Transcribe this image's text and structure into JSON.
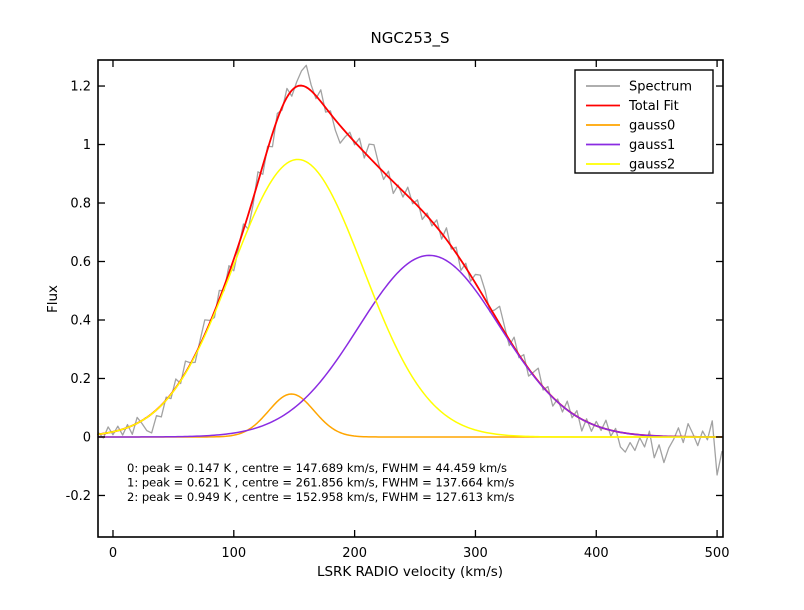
{
  "figure": {
    "title": "NGC253_S"
  },
  "chart_data": {
    "type": "line",
    "title": "NGC253_S",
    "xlabel": "LSRK RADIO velocity (km/s)",
    "ylabel": "Flux",
    "xlim": [
      -12.4,
      504.9
    ],
    "ylim": [
      -0.342,
      1.289
    ],
    "grid": false,
    "x_ticks": {
      "values": [
        0,
        100,
        200,
        300,
        400,
        500
      ],
      "labels": [
        "0",
        "100",
        "200",
        "300",
        "400",
        "500"
      ]
    },
    "y_ticks": {
      "values": [
        -0.2,
        0,
        0.2,
        0.4,
        0.6,
        0.8,
        1.0,
        1.2
      ],
      "labels": [
        "-0.2",
        "0",
        "0.2",
        "0.4",
        "0.6",
        "0.8",
        "1",
        "1.2"
      ]
    },
    "colors": {
      "spectrum": "#a2a2a2",
      "total_fit": "#ff0000",
      "gauss0": "#ffa500",
      "gauss1": "#8a2be2",
      "gauss2": "#ffff00",
      "axes": "#000000",
      "background": "#ffffff"
    },
    "legend": {
      "position": "upper right",
      "entries": [
        {
          "label": "Spectrum",
          "series": "spectrum"
        },
        {
          "label": "Total Fit",
          "series": "total_fit"
        },
        {
          "label": "gauss0",
          "series": "gauss0"
        },
        {
          "label": "gauss1",
          "series": "gauss1"
        },
        {
          "label": "gauss2",
          "series": "gauss2"
        }
      ]
    },
    "gaussian_components": [
      {
        "name": "gauss0",
        "peak_K": 0.147,
        "centre_kms": 147.689,
        "fwhm_kms": 44.459
      },
      {
        "name": "gauss1",
        "peak_K": 0.621,
        "centre_kms": 261.856,
        "fwhm_kms": 137.664
      },
      {
        "name": "gauss2",
        "peak_K": 0.949,
        "centre_kms": 152.958,
        "fwhm_kms": 127.613
      }
    ],
    "total_fit_rule": "sum of gaussian_components",
    "spectrum": {
      "x_start_kms": -12,
      "dx_kms": 4,
      "n_channels": 130,
      "model": "total_fit plus noise offsets (K), estimated from pixels",
      "offsets_K": [
        0.005,
        -0.015,
        0.02,
        -0.01,
        0.015,
        -0.02,
        0.01,
        -0.03,
        0.02,
        -0.01,
        -0.045,
        -0.065,
        -0.02,
        -0.04,
        0.01,
        -0.015,
        0.03,
        -0.01,
        0.04,
        0.005,
        -0.025,
        0.015,
        0.05,
        0.01,
        -0.02,
        0.03,
        -0.015,
        0.025,
        -0.04,
        -0.01,
        0.02,
        -0.05,
        -0.02,
        0.035,
        -0.03,
        0.01,
        -0.045,
        0.02,
        -0.01,
        0.03,
        -0.02,
        0.015,
        0.05,
        0.075,
        0.02,
        -0.01,
        0.04,
        -0.015,
        0.01,
        -0.035,
        -0.06,
        -0.02,
        0.015,
        -0.01,
        0.03,
        -0.02,
        0.045,
        0.06,
        0.01,
        -0.025,
        0.02,
        -0.04,
        0.005,
        -0.02,
        0.03,
        -0.01,
        0.02,
        -0.03,
        0.01,
        -0.015,
        0.025,
        -0.02,
        0.04,
        -0.01,
        0.02,
        -0.035,
        0.015,
        -0.02,
        0.03,
        0.055,
        0.03,
        -0.015,
        0.02,
        0.06,
        0.02,
        -0.02,
        0.035,
        -0.01,
        0.025,
        -0.025,
        0.01,
        0.045,
        -0.01,
        0.02,
        -0.03,
        0.01,
        -0.02,
        0.03,
        -0.015,
        0.02,
        -0.04,
        0.01,
        -0.025,
        0.015,
        -0.01,
        0.03,
        -0.02,
        0.01,
        -0.05,
        -0.065,
        -0.03,
        -0.055,
        -0.01,
        -0.04,
        0.015,
        -0.075,
        -0.03,
        -0.09,
        -0.04,
        -0.01,
        0.03,
        -0.02,
        0.045,
        0.01,
        -0.03,
        0.02,
        -0.01,
        0.055,
        -0.13,
        -0.05
      ]
    },
    "annotation": {
      "lines": [
        "0: peak = 0.147 K , centre = 147.689 km/s, FWHM = 44.459 km/s",
        "1: peak = 0.621 K , centre = 261.856 km/s, FWHM = 137.664 km/s",
        "2: peak = 0.949 K , centre = 152.958 km/s, FWHM = 127.613 km/s"
      ]
    }
  }
}
